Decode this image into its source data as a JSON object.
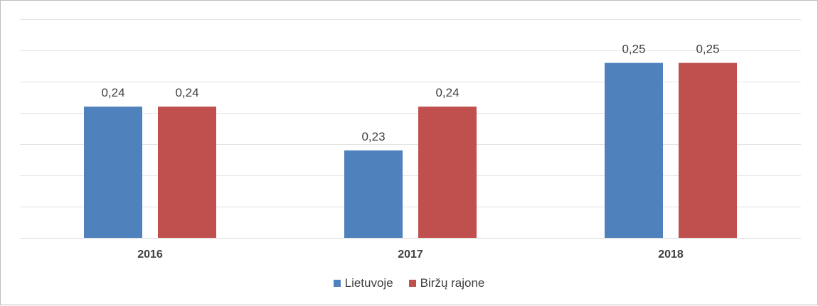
{
  "chart_data": {
    "type": "bar",
    "categories": [
      "2016",
      "2017",
      "2018"
    ],
    "series": [
      {
        "name": "Lietuvoje",
        "values": [
          0.24,
          0.23,
          0.25
        ],
        "labels": [
          "0,24",
          "0,23",
          "0,25"
        ],
        "color": "#4f81bd"
      },
      {
        "name": "Biržų rajone",
        "values": [
          0.24,
          0.24,
          0.25
        ],
        "labels": [
          "0,24",
          "0,24",
          "0,25"
        ],
        "color": "#c0504d"
      }
    ],
    "ylim": [
      0.21,
      0.26
    ],
    "grid": true,
    "legend_position": "bottom"
  }
}
